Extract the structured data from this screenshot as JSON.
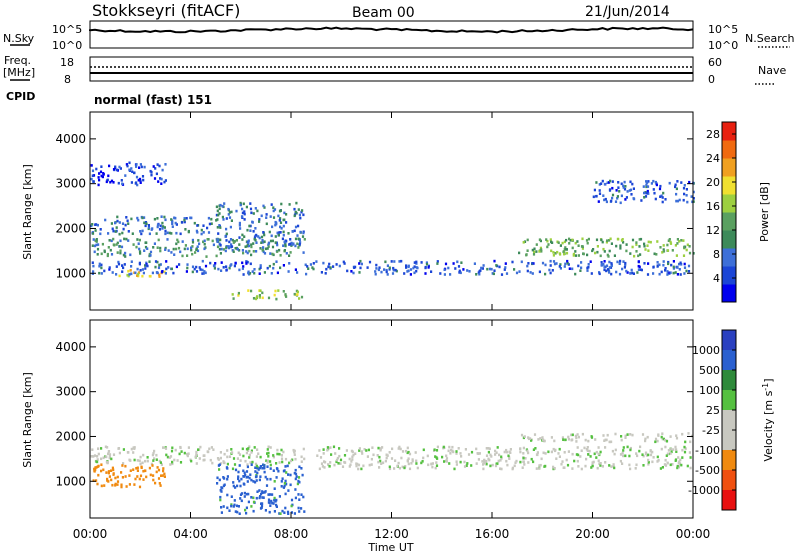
{
  "header": {
    "station": "Stokkseyri (fitACF)",
    "beam": "Beam 00",
    "date": "21/Jun/2014"
  },
  "strip_panels": {
    "nsky_label": "N.Sky",
    "nsearch_label": "N.Search",
    "freq_label_1": "Freq.",
    "freq_label_2": "[MHz]",
    "nave_label": "Nave",
    "cpid_label": "CPID",
    "cpid_value": "normal (fast) 151",
    "noise_left_ticks": [
      "10^5",
      "10^0"
    ],
    "noise_right_ticks": [
      "10^5",
      "10^0"
    ],
    "freq_left_ticks": [
      "18",
      "8"
    ],
    "nave_right_ticks": [
      "60",
      "0"
    ]
  },
  "chart_data": [
    {
      "type": "heatmap",
      "panel": "power",
      "xlabel": "",
      "ylabel": "Slant Range [km]",
      "x_ticks": [
        "00:00",
        "04:00",
        "08:00",
        "12:00",
        "16:00",
        "20:00",
        "00:00"
      ],
      "y_ticks": [
        1000,
        2000,
        3000,
        4000
      ],
      "xlim_hours": [
        0,
        24
      ],
      "ylim_km": [
        180,
        4600
      ],
      "colorbar": {
        "label": "Power [dB]",
        "ticks": [
          4,
          8,
          12,
          16,
          20,
          24,
          28
        ],
        "range": [
          0,
          30
        ],
        "colors": [
          "#0000ee",
          "#1b45d6",
          "#3d6fd8",
          "#3d8a5a",
          "#5aa060",
          "#9dd040",
          "#f0e030",
          "#f0a020",
          "#f06a10",
          "#e82010"
        ]
      },
      "echo_regions": [
        {
          "t": [
            0.0,
            8.6
          ],
          "range_km": [
            1400,
            1800
          ],
          "power_db": 10
        },
        {
          "t": [
            0.0,
            5.0
          ],
          "range_km": [
            1900,
            2300
          ],
          "power_db": 8
        },
        {
          "t": [
            1.0,
            3.0
          ],
          "range_km": [
            950,
            1100
          ],
          "power_db": 20
        },
        {
          "t": [
            5.5,
            8.5
          ],
          "range_km": [
            450,
            650
          ],
          "power_db": 16
        },
        {
          "t": [
            5.0,
            8.5
          ],
          "range_km": [
            1600,
            2600
          ],
          "power_db": 8
        },
        {
          "t": [
            0.0,
            24.0
          ],
          "range_km": [
            1000,
            1300
          ],
          "power_db": 6
        },
        {
          "t": [
            17.0,
            24.0
          ],
          "range_km": [
            1400,
            1800
          ],
          "power_db": 14
        },
        {
          "t": [
            20.0,
            24.0
          ],
          "range_km": [
            2600,
            3100
          ],
          "power_db": 6
        },
        {
          "t": [
            0.0,
            3.0
          ],
          "range_km": [
            3000,
            3500
          ],
          "power_db": 4
        }
      ]
    },
    {
      "type": "heatmap",
      "panel": "velocity",
      "xlabel": "Time UT",
      "ylabel": "Slant Range [km]",
      "x_ticks": [
        "00:00",
        "04:00",
        "08:00",
        "12:00",
        "16:00",
        "20:00",
        "00:00"
      ],
      "y_ticks": [
        1000,
        2000,
        3000,
        4000
      ],
      "xlim_hours": [
        0,
        24
      ],
      "ylim_km": [
        180,
        4600
      ],
      "colorbar": {
        "label": "Velocity [m s^-1]",
        "ticks": [
          1000,
          500,
          100,
          25,
          -25,
          -100,
          -500,
          -1000
        ],
        "colors": [
          "#2a40c0",
          "#2a60d0",
          "#2e8a3a",
          "#55c040",
          "#c8c8c0",
          "#c8c8c0",
          "#f08a10",
          "#f05010",
          "#e81010"
        ]
      },
      "echo_regions": [
        {
          "t": [
            0.0,
            8.6
          ],
          "range_km": [
            1400,
            1800
          ],
          "velocity_ms": 0
        },
        {
          "t": [
            0.0,
            3.0
          ],
          "range_km": [
            900,
            1400
          ],
          "velocity_ms": -300
        },
        {
          "t": [
            5.0,
            8.5
          ],
          "range_km": [
            300,
            1400
          ],
          "velocity_ms": 150
        },
        {
          "t": [
            9.0,
            24.0
          ],
          "range_km": [
            1300,
            1800
          ],
          "velocity_ms": 0
        },
        {
          "t": [
            17.0,
            24.0
          ],
          "range_km": [
            1900,
            2100
          ],
          "velocity_ms": 0
        }
      ]
    }
  ]
}
